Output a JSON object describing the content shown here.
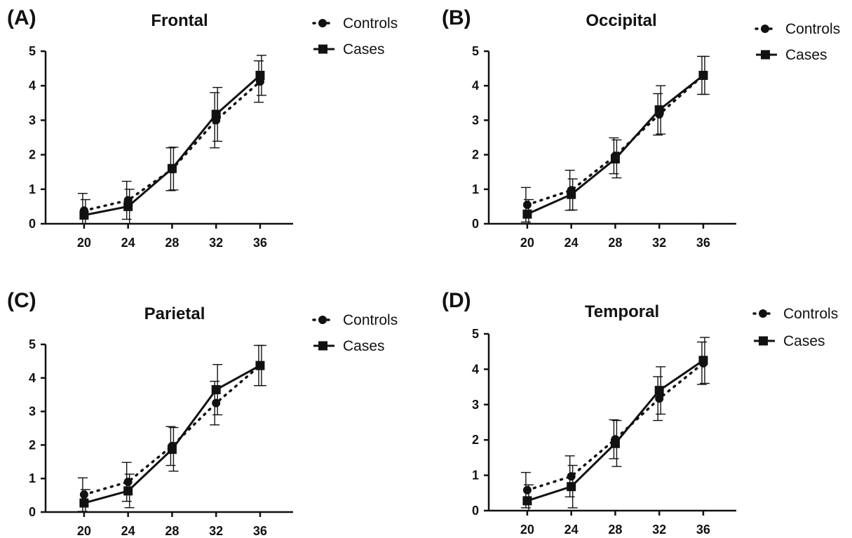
{
  "chart_data": [
    {
      "type": "line",
      "panel": "(A)",
      "title": "Frontal",
      "x": [
        20,
        24,
        28,
        32,
        36
      ],
      "xlim": [
        16.5,
        39
      ],
      "ylim": [
        0,
        5
      ],
      "yticks": [
        0,
        1,
        2,
        3,
        4,
        5
      ],
      "grid": false,
      "legend": "top-right",
      "series": [
        {
          "name": "Controls",
          "style": "dotted",
          "marker": "circle",
          "values": [
            0.38,
            0.68,
            1.58,
            3.0,
            4.12
          ],
          "errors": [
            0.5,
            0.55,
            0.62,
            0.8,
            0.6
          ]
        },
        {
          "name": "Cases",
          "style": "solid",
          "marker": "square",
          "values": [
            0.25,
            0.5,
            1.6,
            3.17,
            4.3
          ],
          "errors": [
            0.45,
            0.5,
            0.62,
            0.78,
            0.58
          ]
        }
      ]
    },
    {
      "type": "line",
      "panel": "(B)",
      "title": "Occipital",
      "x": [
        20,
        24,
        28,
        32,
        36
      ],
      "xlim": [
        16.5,
        39
      ],
      "ylim": [
        0,
        5
      ],
      "yticks": [
        0,
        1,
        2,
        3,
        4,
        5
      ],
      "grid": false,
      "legend": "top-right",
      "series": [
        {
          "name": "Controls",
          "style": "dotted",
          "marker": "circle",
          "values": [
            0.55,
            0.97,
            1.97,
            3.17,
            4.3
          ],
          "errors": [
            0.5,
            0.58,
            0.52,
            0.6,
            0.55
          ]
        },
        {
          "name": "Cases",
          "style": "solid",
          "marker": "square",
          "values": [
            0.28,
            0.85,
            1.88,
            3.3,
            4.3
          ],
          "errors": [
            0.42,
            0.45,
            0.55,
            0.7,
            0.55
          ]
        }
      ]
    },
    {
      "type": "line",
      "panel": "(C)",
      "title": "Parietal",
      "x": [
        20,
        24,
        28,
        32,
        36
      ],
      "xlim": [
        16.5,
        39
      ],
      "ylim": [
        0,
        5
      ],
      "yticks": [
        0,
        1,
        2,
        3,
        4,
        5
      ],
      "grid": false,
      "legend": "top-right",
      "series": [
        {
          "name": "Controls",
          "style": "dotted",
          "marker": "circle",
          "values": [
            0.52,
            0.9,
            1.97,
            3.25,
            4.37
          ],
          "errors": [
            0.5,
            0.58,
            0.58,
            0.65,
            0.6
          ]
        },
        {
          "name": "Cases",
          "style": "solid",
          "marker": "square",
          "values": [
            0.27,
            0.63,
            1.87,
            3.65,
            4.37
          ],
          "errors": [
            0.4,
            0.5,
            0.65,
            0.75,
            0.6
          ]
        }
      ]
    },
    {
      "type": "line",
      "panel": "(D)",
      "title": "Temporal",
      "x": [
        20,
        24,
        28,
        32,
        36
      ],
      "xlim": [
        16.5,
        39
      ],
      "ylim": [
        0,
        5
      ],
      "yticks": [
        0,
        1,
        2,
        3,
        4,
        5
      ],
      "grid": false,
      "legend": "top-right",
      "series": [
        {
          "name": "Controls",
          "style": "dotted",
          "marker": "circle",
          "values": [
            0.58,
            0.97,
            2.02,
            3.17,
            4.17
          ],
          "errors": [
            0.5,
            0.58,
            0.55,
            0.62,
            0.6
          ]
        },
        {
          "name": "Cases",
          "style": "solid",
          "marker": "square",
          "values": [
            0.28,
            0.68,
            1.9,
            3.4,
            4.25
          ],
          "errors": [
            0.45,
            0.6,
            0.65,
            0.67,
            0.65
          ]
        }
      ]
    }
  ]
}
